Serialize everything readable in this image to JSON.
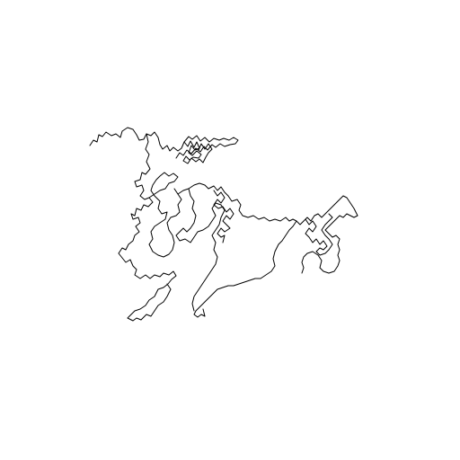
{
  "figure": {
    "description_kind": "single-stroke random walk / fractal trace",
    "stroke_color": "#000000",
    "background_color": "#ffffff",
    "has_title": false,
    "has_axes": false,
    "has_legend": false
  }
}
